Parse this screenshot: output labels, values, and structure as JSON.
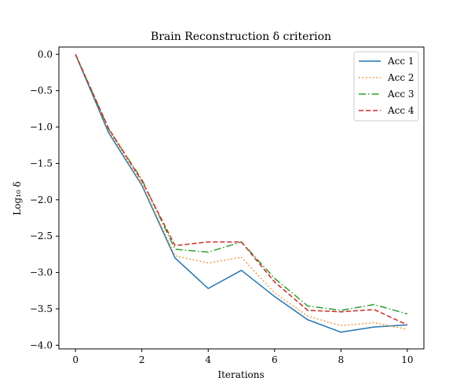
{
  "chart_data": {
    "type": "line",
    "title": "Brain Reconstruction δ criterion",
    "xlabel": "Iterations",
    "ylabel": "Log₁₀ δ",
    "xlim": [
      -0.5,
      10.5
    ],
    "ylim": [
      -4.05,
      0.1
    ],
    "x": [
      0,
      1,
      2,
      3,
      4,
      5,
      6,
      7,
      8,
      9,
      10
    ],
    "xticks": [
      0,
      2,
      4,
      6,
      8,
      10
    ],
    "xtick_labels": [
      "0",
      "2",
      "4",
      "6",
      "8",
      "10"
    ],
    "yticks": [
      0.0,
      -0.5,
      -1.0,
      -1.5,
      -2.0,
      -2.5,
      -3.0,
      -3.5,
      -4.0
    ],
    "ytick_labels": [
      "0.0",
      "−0.5",
      "−1.0",
      "−1.5",
      "−2.0",
      "−2.5",
      "−3.0",
      "−3.5",
      "−4.0"
    ],
    "grid": false,
    "legend_position": "top-right",
    "series": [
      {
        "name": "Acc 1",
        "color": "#1f77b4",
        "dash": "solid",
        "values": [
          0.0,
          -1.08,
          -1.8,
          -2.8,
          -3.22,
          -2.97,
          -3.33,
          -3.65,
          -3.82,
          -3.75,
          -3.72
        ]
      },
      {
        "name": "Acc 2",
        "color": "#ff7f0e",
        "dash": "dotted",
        "values": [
          0.0,
          -1.05,
          -1.78,
          -2.77,
          -2.87,
          -2.79,
          -3.28,
          -3.6,
          -3.73,
          -3.69,
          -3.78
        ]
      },
      {
        "name": "Acc 3",
        "color": "#2ca02c",
        "dash": "dashdot",
        "values": [
          0.0,
          -1.03,
          -1.72,
          -2.68,
          -2.72,
          -2.58,
          -3.08,
          -3.46,
          -3.52,
          -3.44,
          -3.57
        ]
      },
      {
        "name": "Acc 4",
        "color": "#d62728",
        "dash": "dashed",
        "values": [
          0.0,
          -1.02,
          -1.74,
          -2.63,
          -2.58,
          -2.58,
          -3.13,
          -3.52,
          -3.54,
          -3.51,
          -3.72
        ]
      }
    ]
  }
}
